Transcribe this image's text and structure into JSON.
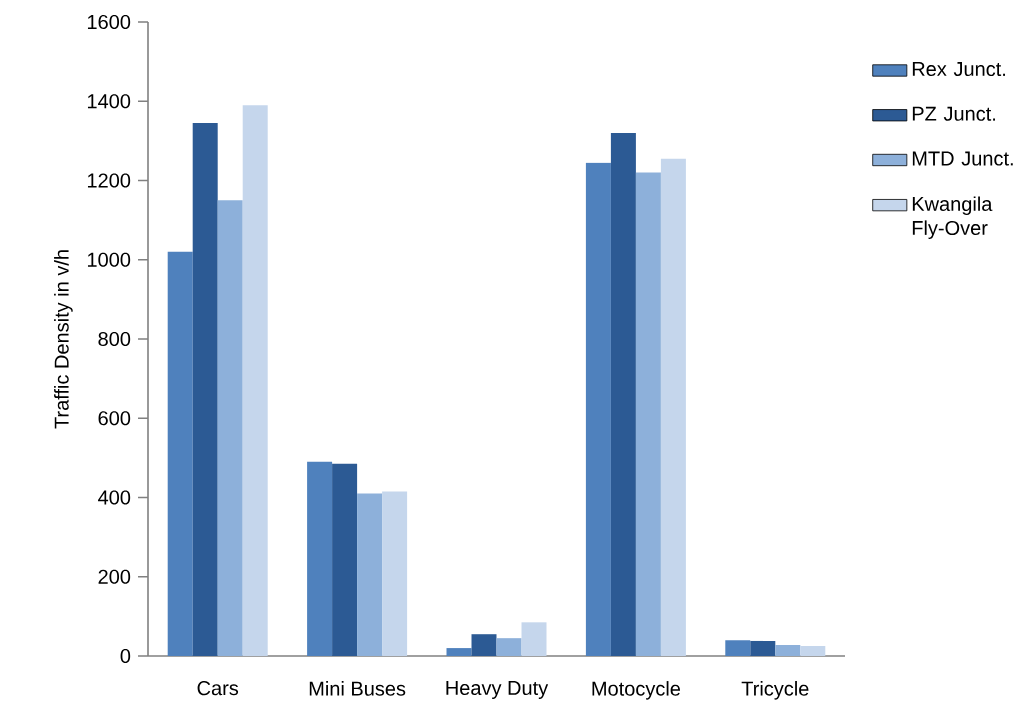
{
  "chart_data": {
    "type": "bar",
    "ylabel": "Traffic Density in v/h",
    "categories": [
      "Cars",
      "Mini Buses",
      "Heavy Duty",
      "Motocycle",
      "Tricycle"
    ],
    "series": [
      {
        "name": "Rex Junct.",
        "color": "#4f81bd",
        "values": [
          1020,
          490,
          20,
          1245,
          40
        ]
      },
      {
        "name": "PZ Junct.",
        "color": "#2c5a94",
        "values": [
          1345,
          485,
          55,
          1320,
          38
        ]
      },
      {
        "name": "MTD Junct.",
        "color": "#8db0da",
        "values": [
          1150,
          410,
          45,
          1220,
          28
        ]
      },
      {
        "name": "Kwangila Fly-Over",
        "color": "#c5d6ec",
        "values": [
          1390,
          415,
          85,
          1255,
          25
        ]
      }
    ],
    "ylim": [
      0,
      1600
    ],
    "yticks": [
      0,
      200,
      400,
      600,
      800,
      1000,
      1200,
      1400,
      1600
    ],
    "legend": "right",
    "grid": false
  }
}
